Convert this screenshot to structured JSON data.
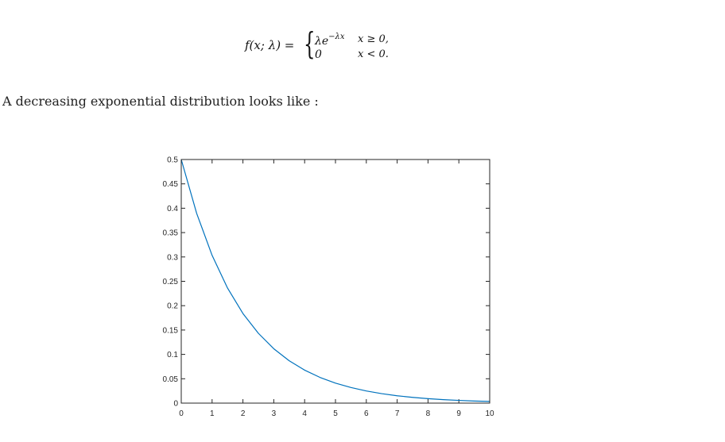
{
  "formula": {
    "lhs": "f(x; λ) =",
    "case1_expr": "λe",
    "case1_exp": "−λx",
    "case1_cond": "x ≥ 0,",
    "case2_expr": "0",
    "case2_cond": "x < 0."
  },
  "intro_text": "A decreasing exponential distribution looks like :",
  "chart_data": {
    "type": "line",
    "title": "",
    "xlabel": "",
    "ylabel": "",
    "xlim": [
      0,
      10
    ],
    "ylim": [
      0,
      0.5
    ],
    "x_ticks": [
      0,
      1,
      2,
      3,
      4,
      5,
      6,
      7,
      8,
      9,
      10
    ],
    "x_tick_labels": [
      "0",
      "1",
      "2",
      "3",
      "4",
      "5",
      "6",
      "7",
      "8",
      "9",
      "10"
    ],
    "y_ticks": [
      0,
      0.05,
      0.1,
      0.15,
      0.2,
      0.25,
      0.3,
      0.35,
      0.4,
      0.45,
      0.5
    ],
    "y_tick_labels": [
      "0",
      "0.05",
      "0.1",
      "0.15",
      "0.2",
      "0.25",
      "0.3",
      "0.35",
      "0.4",
      "0.45",
      "0.5"
    ],
    "grid": false,
    "box": true,
    "series": [
      {
        "color": "#0072bd",
        "x": [
          0,
          0.5,
          1,
          1.5,
          2,
          2.5,
          3,
          3.5,
          4,
          4.5,
          5,
          5.5,
          6,
          6.5,
          7,
          7.5,
          8,
          8.5,
          9,
          9.5,
          10
        ],
        "y": [
          0.5,
          0.3894,
          0.3033,
          0.2362,
          0.1839,
          0.1433,
          0.1116,
          0.0869,
          0.0677,
          0.0527,
          0.041,
          0.032,
          0.0249,
          0.0194,
          0.0151,
          0.0118,
          0.0092,
          0.0071,
          0.0056,
          0.0043,
          0.0034
        ]
      }
    ]
  }
}
